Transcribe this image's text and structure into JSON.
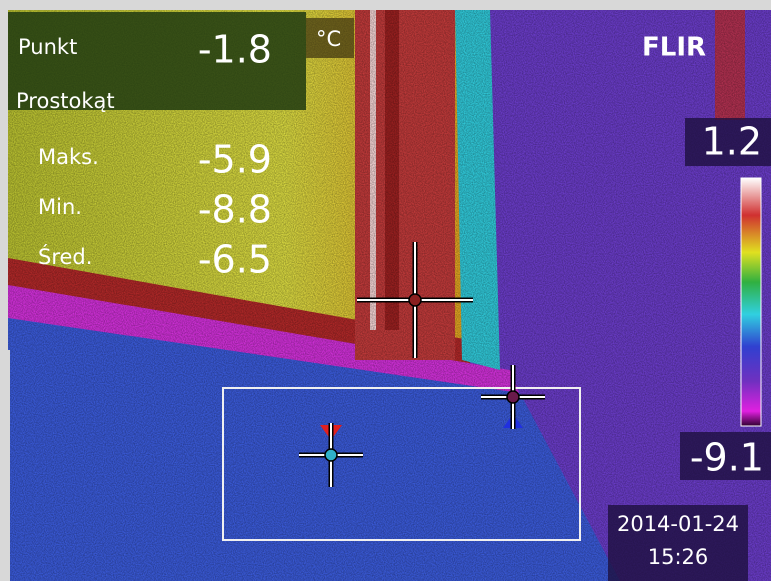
{
  "readout": {
    "point_label": "Punkt",
    "point_value": "-1.8",
    "unit": "°C",
    "box_label": "Prostokąt",
    "rows": [
      {
        "label": "Maks.",
        "value": "-5.9"
      },
      {
        "label": "Min.",
        "value": "-8.8"
      },
      {
        "label": "Śred.",
        "value": "-6.5"
      }
    ]
  },
  "brand": "FLIR",
  "scale": {
    "max": "1.2",
    "min": "-9.1"
  },
  "timestamp": {
    "date": "2014-01-24",
    "time": "15:26"
  }
}
